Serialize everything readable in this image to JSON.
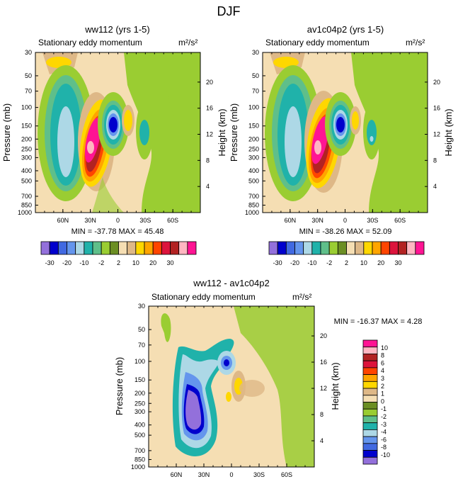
{
  "figure": {
    "title": "DJF"
  },
  "scale": {
    "colors": [
      "#9370db",
      "#0000cd",
      "#4169e1",
      "#6495ed",
      "#add8e6",
      "#20b2aa",
      "#5fbf8a",
      "#9acd32",
      "#6b8e23",
      "#f5deb3",
      "#deb887",
      "#ffd700",
      "#ffa500",
      "#ff4500",
      "#dc143c",
      "#b22222",
      "#ffb6c1",
      "#ff1493"
    ],
    "top_labels": [
      "-30",
      "-20",
      "-10",
      "-2",
      "2",
      "10",
      "20",
      "30"
    ],
    "diff_colors": [
      "#9370db",
      "#0000cd",
      "#4169e1",
      "#6495ed",
      "#add8e6",
      "#20b2aa",
      "#5fbf8a",
      "#9acd32",
      "#6b8e23",
      "#f5deb3",
      "#deb887",
      "#ffd700",
      "#ffa500",
      "#ff4500",
      "#dc143c",
      "#b22222",
      "#ffb6c1",
      "#ff1493"
    ],
    "diff_labels": [
      "10",
      "8",
      "6",
      "4",
      "3",
      "2",
      "1",
      "0",
      "-1",
      "-2",
      "-3",
      "-4",
      "-6",
      "-8",
      "-10"
    ]
  },
  "chart_data": [
    {
      "type": "heatmap",
      "title": "ww112 (yrs 1-5)",
      "subtitle": "Stationary eddy momentum",
      "units": "m²/s²",
      "xlabel": "",
      "ylabel": "Pressure (mb)",
      "ylabel_right": "Height (km)",
      "x_ticks": [
        "60N",
        "30N",
        "0",
        "30S",
        "60S"
      ],
      "x_tick_values": [
        60,
        30,
        0,
        -30,
        -60
      ],
      "xlim": [
        90,
        -90
      ],
      "y_ticks": [
        "30",
        "50",
        "70",
        "100",
        "150",
        "200",
        "250",
        "300",
        "400",
        "500",
        "700",
        "850",
        "1000"
      ],
      "y_tick_values": [
        30,
        50,
        70,
        100,
        150,
        200,
        250,
        300,
        400,
        500,
        700,
        850,
        1000
      ],
      "ylim": [
        30,
        1000
      ],
      "height_ticks": [
        "20",
        "16",
        "12",
        "8",
        "4"
      ],
      "height_tick_values": [
        20,
        16,
        12,
        8,
        4
      ],
      "stats": "MIN = -37.78  MAX =  45.48"
    },
    {
      "type": "heatmap",
      "title": "av1c04p2 (yrs 1-5)",
      "subtitle": "Stationary eddy momentum",
      "units": "m²/s²",
      "xlabel": "",
      "ylabel": "Pressure (mb)",
      "ylabel_right": "Height (km)",
      "x_ticks": [
        "60N",
        "30N",
        "0",
        "30S",
        "60S"
      ],
      "x_tick_values": [
        60,
        30,
        0,
        -30,
        -60
      ],
      "xlim": [
        90,
        -90
      ],
      "y_ticks": [
        "30",
        "50",
        "70",
        "100",
        "150",
        "200",
        "250",
        "300",
        "400",
        "500",
        "700",
        "850",
        "1000"
      ],
      "y_tick_values": [
        30,
        50,
        70,
        100,
        150,
        200,
        250,
        300,
        400,
        500,
        700,
        850,
        1000
      ],
      "ylim": [
        30,
        1000
      ],
      "height_ticks": [
        "20",
        "16",
        "12",
        "8",
        "4"
      ],
      "height_tick_values": [
        20,
        16,
        12,
        8,
        4
      ],
      "stats": "MIN = -38.26  MAX =  52.09"
    },
    {
      "type": "heatmap",
      "title": "ww112 - av1c04p2",
      "subtitle": "Stationary eddy momentum",
      "units": "m²/s²",
      "xlabel": "",
      "ylabel": "Pressure (mb)",
      "ylabel_right": "Height (km)",
      "x_ticks": [
        "60N",
        "30N",
        "0",
        "30S",
        "60S"
      ],
      "x_tick_values": [
        60,
        30,
        0,
        -30,
        -60
      ],
      "xlim": [
        90,
        -90
      ],
      "y_ticks": [
        "30",
        "50",
        "70",
        "100",
        "150",
        "200",
        "250",
        "300",
        "400",
        "500",
        "700",
        "850",
        "1000"
      ],
      "y_tick_values": [
        30,
        50,
        70,
        100,
        150,
        200,
        250,
        300,
        400,
        500,
        700,
        850,
        1000
      ],
      "ylim": [
        30,
        1000
      ],
      "height_ticks": [
        "20",
        "16",
        "12",
        "8",
        "4"
      ],
      "height_tick_values": [
        20,
        16,
        12,
        8,
        4
      ],
      "stats": "MIN = -16.37  MAX =   4.28"
    }
  ]
}
